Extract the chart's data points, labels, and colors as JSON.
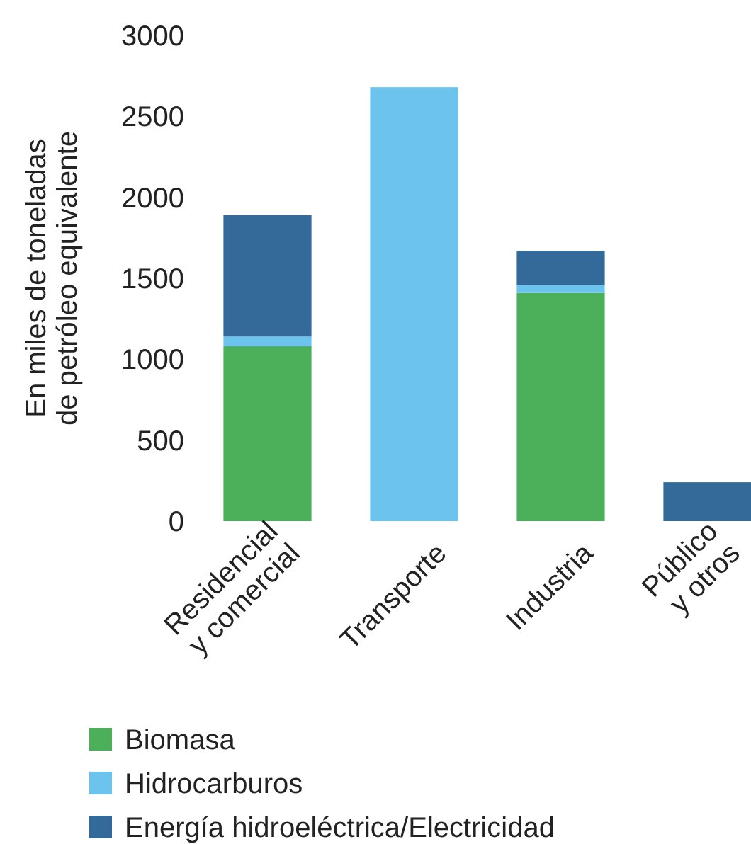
{
  "chart_data": {
    "type": "bar",
    "stacked": true,
    "ylabel": "En miles de toneladas\nde petróleo equivalente",
    "categories": [
      "Residencial\ny comercial",
      "Transporte",
      "Industria",
      "Público\ny otros"
    ],
    "series": [
      {
        "name": "Biomasa",
        "color": "#4caf5a",
        "values": [
          1080,
          0,
          1410,
          0
        ]
      },
      {
        "name": "Hidrocarburos",
        "color": "#6cc3ee",
        "values": [
          60,
          2680,
          50,
          0
        ]
      },
      {
        "name": "Energía hidroeléctrica/Electricidad",
        "color": "#336a9a",
        "values": [
          750,
          0,
          210,
          240
        ]
      }
    ],
    "ylim": [
      0,
      3000
    ],
    "yticks": [
      0,
      500,
      1000,
      1500,
      2000,
      2500,
      3000
    ],
    "legend": "bottom"
  }
}
